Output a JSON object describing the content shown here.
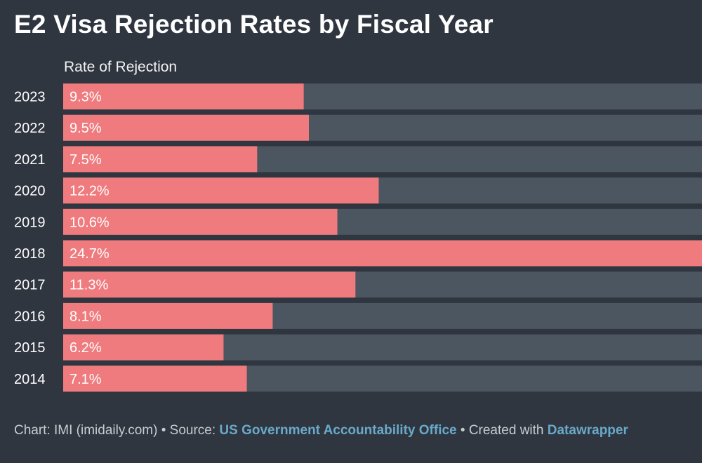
{
  "title": "E2 Visa Rejection Rates by Fiscal Year",
  "colors": {
    "background": "#2f3640",
    "bar": "#ef7b7e",
    "track": "#4c5660",
    "link": "#6aa9c9"
  },
  "chart_data": {
    "type": "bar",
    "orientation": "horizontal",
    "column_header": "Rate of Rejection",
    "categories": [
      "2023",
      "2022",
      "2021",
      "2020",
      "2019",
      "2018",
      "2017",
      "2016",
      "2015",
      "2014"
    ],
    "values": [
      9.3,
      9.5,
      7.5,
      12.2,
      10.6,
      24.7,
      11.3,
      8.1,
      6.2,
      7.1
    ],
    "value_labels": [
      "9.3%",
      "9.5%",
      "7.5%",
      "12.2%",
      "10.6%",
      "24.7%",
      "11.3%",
      "8.1%",
      "6.2%",
      "7.1%"
    ],
    "xlim": [
      0,
      24.7
    ]
  },
  "footer": {
    "prefix": "Chart: IMI (imidaily.com) • Source: ",
    "source": "US Government Accountability Office",
    "middle": " • Created with ",
    "tool": "Datawrapper"
  }
}
